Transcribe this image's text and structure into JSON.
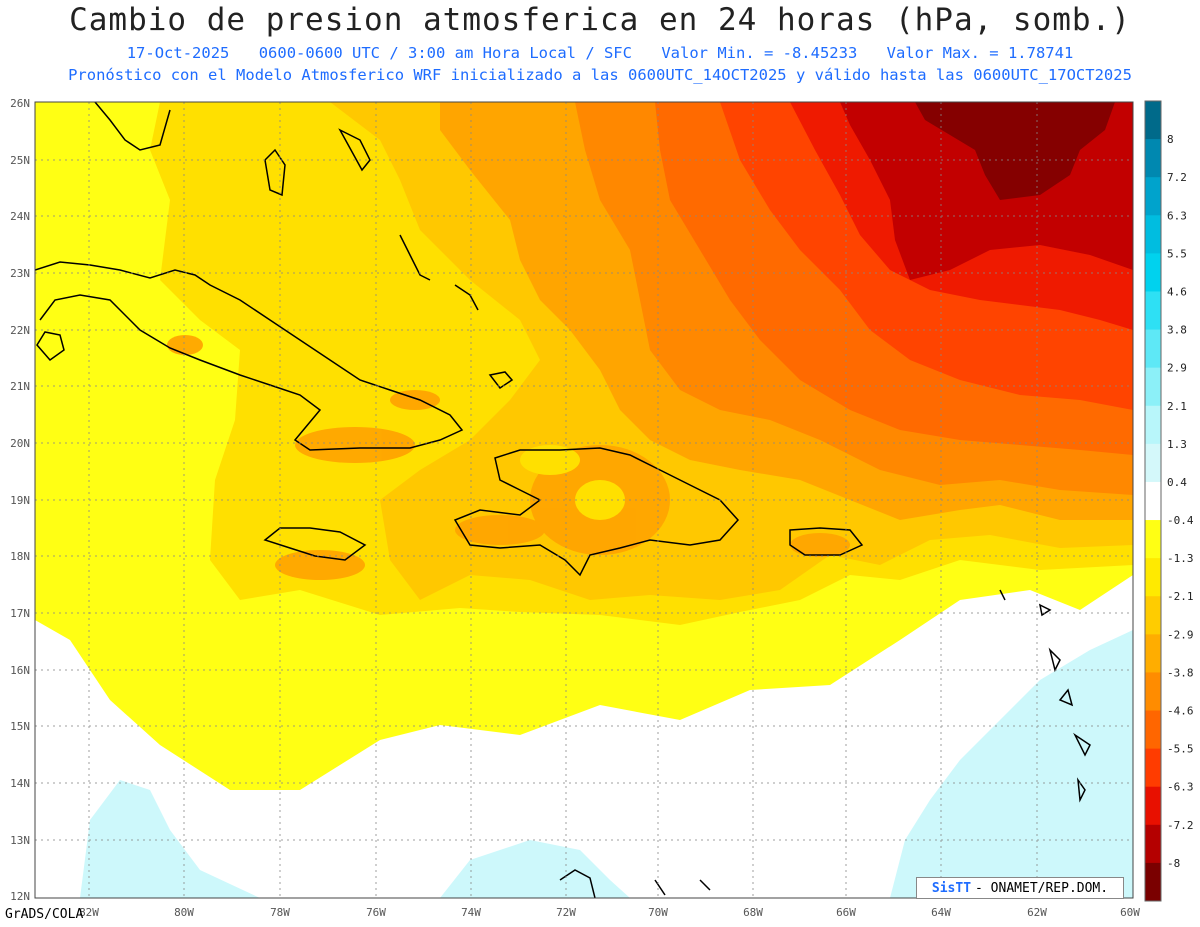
{
  "header": {
    "title": "Cambio de presion atmosferica en 24 horas (hPa, somb.)",
    "date": "17-Oct-2025",
    "time_info": "0600-0600 UTC / 3:00 am Hora Local / SFC",
    "min_label": "Valor Min. = -8.45233",
    "max_label": "Valor Max. = 1.78741",
    "forecast_note": "Pronóstico con el Modelo Atmosferico WRF inicializado a las 0600UTC_14OCT2025 y válido hasta las  0600UTC_17OCT2025"
  },
  "map": {
    "lat_ticks": [
      "26N",
      "25N",
      "24N",
      "23N",
      "22N",
      "21N",
      "20N",
      "19N",
      "18N",
      "17N",
      "16N",
      "15N",
      "14N",
      "13N",
      "12N"
    ],
    "lon_ticks": [
      "82W",
      "80W",
      "78W",
      "76W",
      "74W",
      "72W",
      "70W",
      "68W",
      "66W",
      "64W",
      "62W",
      "60W"
    ],
    "value_range": [
      -8.45233,
      1.78741
    ]
  },
  "colorbar": {
    "ticks": [
      "8",
      "7.2",
      "6.3",
      "5.5",
      "4.6",
      "3.8",
      "2.9",
      "2.1",
      "1.3",
      "0.4",
      "-0.4",
      "-1.3",
      "-2.1",
      "-2.9",
      "-3.8",
      "-4.6",
      "-5.5",
      "-6.3",
      "-7.2",
      "-8"
    ],
    "colors": [
      "#006a8a",
      "#0088b0",
      "#00a3cc",
      "#00bde0",
      "#00d2ee",
      "#2ee0f4",
      "#5ee8f6",
      "#8cf0f8",
      "#b8f6fa",
      "#d4f8fa",
      "#ffffff",
      "#ffff14",
      "#ffea00",
      "#ffcc00",
      "#ffad00",
      "#ff8c00",
      "#ff6600",
      "#ff3c00",
      "#e81000",
      "#b40000",
      "#7a0000"
    ]
  },
  "footer": {
    "software": "GrADS/COLA",
    "credit_logo": "SisTT",
    "credit_text": "- ONAMET/REP.DOM."
  }
}
